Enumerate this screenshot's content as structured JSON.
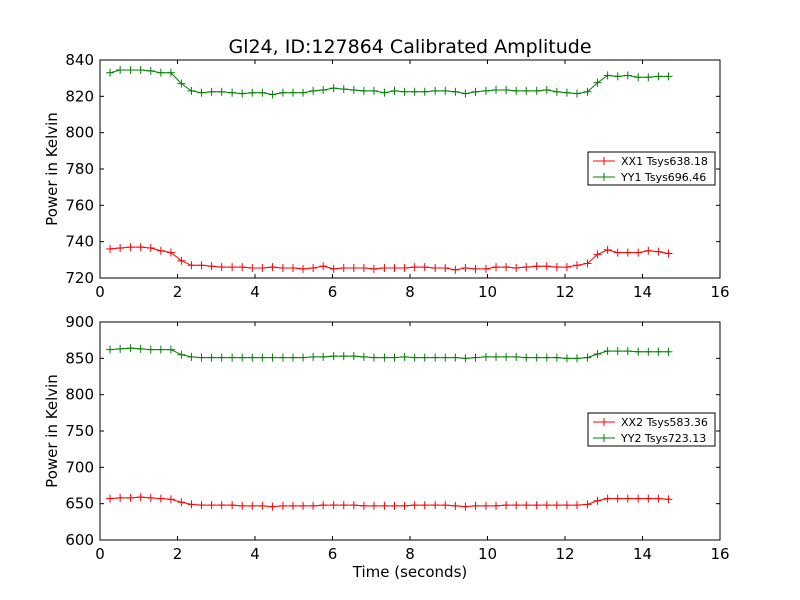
{
  "figure_title": "Gl24, ID:127864 Calibrated Amplitude",
  "colors": {
    "red_series": "#ff0000",
    "green_series": "#008000",
    "axes": "#000000",
    "background": "#ffffff"
  },
  "chart_data": [
    {
      "type": "line",
      "title": "Gl24, ID:127864 Calibrated Amplitude",
      "xlabel": "",
      "ylabel": "Power in Kelvin",
      "xlim": [
        0,
        16
      ],
      "ylim": [
        720,
        840
      ],
      "xticks": [
        0,
        2,
        4,
        6,
        8,
        10,
        12,
        14,
        16
      ],
      "yticks": [
        720,
        740,
        760,
        780,
        800,
        820,
        840
      ],
      "grid": false,
      "legend_position": "center-right",
      "x": [
        0.26,
        0.52,
        0.79,
        1.05,
        1.31,
        1.57,
        1.83,
        2.1,
        2.36,
        2.62,
        2.88,
        3.14,
        3.41,
        3.67,
        3.93,
        4.19,
        4.45,
        4.72,
        4.98,
        5.24,
        5.5,
        5.76,
        6.03,
        6.29,
        6.55,
        6.81,
        7.07,
        7.34,
        7.6,
        7.86,
        8.12,
        8.38,
        8.65,
        8.91,
        9.17,
        9.43,
        9.69,
        9.96,
        10.22,
        10.48,
        10.74,
        11,
        11.27,
        11.53,
        11.79,
        12.05,
        12.31,
        12.58,
        12.84,
        13.1,
        13.36,
        13.62,
        13.89,
        14.15,
        14.41,
        14.67
      ],
      "series": [
        {
          "name": "XX1 Tsys638.18",
          "color": "#ff0000",
          "values": [
            736,
            736.5,
            737,
            737,
            736.5,
            735,
            734,
            729.5,
            727,
            727,
            726.5,
            726,
            726,
            726,
            725.5,
            725.5,
            726,
            725.5,
            725.5,
            725,
            725.5,
            726.5,
            725,
            725.5,
            725.5,
            725.5,
            725,
            725.5,
            725.5,
            725.5,
            726,
            726,
            725.5,
            725.5,
            724.5,
            725.5,
            725,
            725,
            726,
            726,
            725.5,
            726,
            726.5,
            726.5,
            726,
            726,
            727,
            728,
            733,
            735.5,
            734,
            734,
            734,
            735,
            734.5,
            733.5
          ]
        },
        {
          "name": "YY1 Tsys696.46",
          "color": "#008000",
          "values": [
            833,
            834.5,
            834.5,
            834.5,
            834,
            833,
            833,
            827,
            823,
            822,
            822.5,
            822.5,
            822,
            821.5,
            822,
            822,
            821,
            822,
            822,
            822,
            823,
            823.5,
            824.5,
            824,
            823.5,
            823,
            823,
            822,
            823,
            822.5,
            822.5,
            822.5,
            823,
            823,
            822.5,
            821.5,
            822.5,
            823,
            823.5,
            823.5,
            823,
            823,
            823,
            823.5,
            822.5,
            822,
            821.5,
            822.5,
            827.5,
            831.5,
            831,
            831.5,
            830.5,
            830.5,
            831,
            831
          ]
        }
      ]
    },
    {
      "type": "line",
      "title": "",
      "xlabel": "Time (seconds)",
      "ylabel": "Power in Kelvin",
      "xlim": [
        0,
        16
      ],
      "ylim": [
        600,
        900
      ],
      "xticks": [
        0,
        2,
        4,
        6,
        8,
        10,
        12,
        14,
        16
      ],
      "yticks": [
        600,
        650,
        700,
        750,
        800,
        850,
        900
      ],
      "grid": false,
      "legend_position": "center-right",
      "x": [
        0.26,
        0.52,
        0.79,
        1.05,
        1.31,
        1.57,
        1.83,
        2.1,
        2.36,
        2.62,
        2.88,
        3.14,
        3.41,
        3.67,
        3.93,
        4.19,
        4.45,
        4.72,
        4.98,
        5.24,
        5.5,
        5.76,
        6.03,
        6.29,
        6.55,
        6.81,
        7.07,
        7.34,
        7.6,
        7.86,
        8.12,
        8.38,
        8.65,
        8.91,
        9.17,
        9.43,
        9.69,
        9.96,
        10.22,
        10.48,
        10.74,
        11,
        11.27,
        11.53,
        11.79,
        12.05,
        12.31,
        12.58,
        12.84,
        13.1,
        13.36,
        13.62,
        13.89,
        14.15,
        14.41,
        14.67
      ],
      "series": [
        {
          "name": "XX2 Tsys583.36",
          "color": "#ff0000",
          "values": [
            657,
            658,
            658,
            659,
            658,
            657,
            656,
            652,
            649,
            648,
            648,
            648,
            648,
            647,
            647,
            647,
            646,
            647,
            647,
            647,
            647,
            648,
            648,
            648,
            648,
            647,
            647,
            647,
            647,
            647,
            648,
            648,
            648,
            648,
            647,
            646,
            647,
            647,
            647,
            648,
            648,
            648,
            648,
            648,
            648,
            648,
            648,
            649,
            654,
            657,
            657,
            657,
            657,
            657,
            657,
            656
          ]
        },
        {
          "name": "YY2 Tsys723.13",
          "color": "#008000",
          "values": [
            862,
            863,
            864,
            863,
            862,
            862,
            862,
            855,
            852,
            851,
            851,
            851,
            851,
            851,
            851,
            851,
            851,
            851,
            851,
            851,
            852,
            852,
            853,
            853,
            853,
            852,
            851,
            851,
            851,
            852,
            851,
            851,
            851,
            851,
            851,
            850,
            851,
            852,
            852,
            852,
            852,
            851,
            851,
            851,
            851,
            850,
            850,
            851,
            856,
            860,
            860,
            860,
            859,
            859,
            859,
            859
          ]
        }
      ]
    }
  ]
}
